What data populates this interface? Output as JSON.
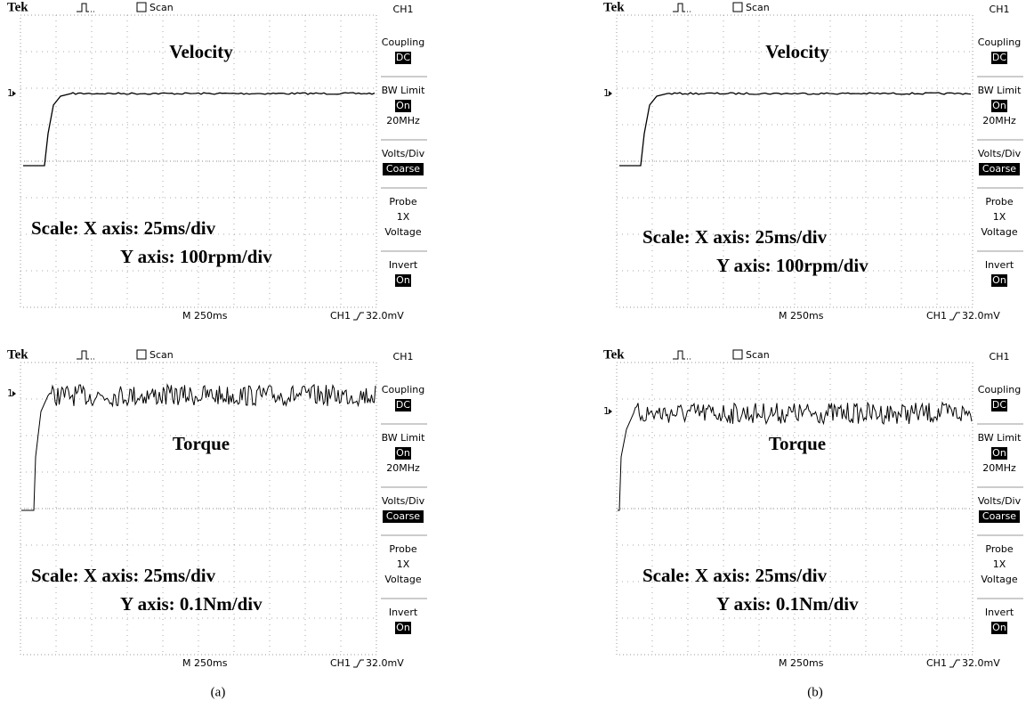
{
  "panels": [
    {
      "brand": "Tek",
      "mode": "Scan",
      "title": "Velocity",
      "marker": "1",
      "scale_x": "Scale: X axis: 25ms/div",
      "scale_y": "Y axis: 100rpm/div",
      "timebase": "M 250ms",
      "trigger": "CH1",
      "trigger_level": "32.0mV",
      "menu": {
        "channel": "CH1",
        "items": [
          {
            "label": "Coupling",
            "value": "DC"
          },
          {
            "label": "BW Limit",
            "value": "On",
            "notes": [
              "20MHz"
            ]
          },
          {
            "label": "Volts/Div",
            "value": "Coarse"
          },
          {
            "label": "Probe",
            "notes": [
              "1X",
              "Voltage"
            ]
          },
          {
            "label": "Invert",
            "value": "On"
          }
        ]
      }
    },
    {
      "brand": "Tek",
      "mode": "Scan",
      "title": "Velocity",
      "marker": "1",
      "scale_x": "Scale: X axis: 25ms/div",
      "scale_y": "Y axis: 100rpm/div",
      "timebase": "M 250ms",
      "trigger": "CH1",
      "trigger_level": "32.0mV",
      "menu": {
        "channel": "CH1",
        "items": [
          {
            "label": "Coupling",
            "value": "DC"
          },
          {
            "label": "BW Limit",
            "value": "On",
            "notes": [
              "20MHz"
            ]
          },
          {
            "label": "Volts/Div",
            "value": "Coarse"
          },
          {
            "label": "Probe",
            "notes": [
              "1X",
              "Voltage"
            ]
          },
          {
            "label": "Invert",
            "value": "On"
          }
        ]
      }
    },
    {
      "brand": "Tek",
      "mode": "Scan",
      "title": "Torque",
      "marker": "1",
      "scale_x": "Scale: X axis: 25ms/div",
      "scale_y": "Y axis: 0.1Nm/div",
      "timebase": "M 250ms",
      "trigger": "CH1",
      "trigger_level": "32.0mV",
      "menu": {
        "channel": "CH1",
        "items": [
          {
            "label": "Coupling",
            "value": "DC"
          },
          {
            "label": "BW Limit",
            "value": "On",
            "notes": [
              "20MHz"
            ]
          },
          {
            "label": "Volts/Div",
            "value": "Coarse"
          },
          {
            "label": "Probe",
            "notes": [
              "1X",
              "Voltage"
            ]
          },
          {
            "label": "Invert",
            "value": "On"
          }
        ]
      }
    },
    {
      "brand": "Tek",
      "mode": "Scan",
      "title": "Torque",
      "marker": "1",
      "scale_x": "Scale: X axis: 25ms/div",
      "scale_y": "Y axis: 0.1Nm/div",
      "timebase": "M 250ms",
      "trigger": "CH1",
      "trigger_level": "32.0mV",
      "menu": {
        "channel": "CH1",
        "items": [
          {
            "label": "Coupling",
            "value": "DC"
          },
          {
            "label": "BW Limit",
            "value": "On",
            "notes": [
              "20MHz"
            ]
          },
          {
            "label": "Volts/Div",
            "value": "Coarse"
          },
          {
            "label": "Probe",
            "notes": [
              "1X",
              "Voltage"
            ]
          },
          {
            "label": "Invert",
            "value": "On"
          }
        ]
      }
    }
  ],
  "captions": [
    "(a)",
    "(b)"
  ]
}
